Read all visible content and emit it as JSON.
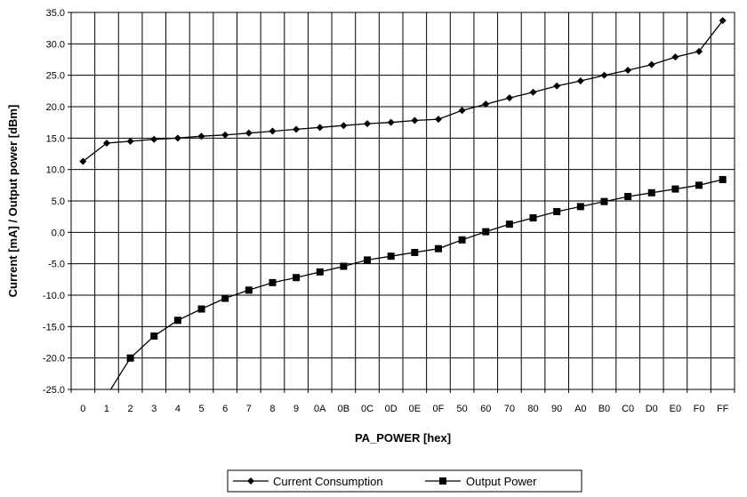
{
  "chart_data": {
    "type": "line",
    "xlabel": "PA_POWER [hex]",
    "ylabel": "Current [mA] / Output power [dBm]",
    "ylim": [
      -25,
      35
    ],
    "y_ticks": [
      "35.0",
      "30.0",
      "25.0",
      "20.0",
      "15.0",
      "10.0",
      "5.0",
      "0.0",
      "-5.0",
      "-10.0",
      "-15.0",
      "-20.0",
      "-25.0"
    ],
    "grid": true,
    "legend_position": "bottom",
    "categories": [
      "0",
      "1",
      "2",
      "3",
      "4",
      "5",
      "6",
      "7",
      "8",
      "9",
      "0A",
      "0B",
      "0C",
      "0D",
      "0E",
      "0F",
      "50",
      "60",
      "70",
      "80",
      "90",
      "A0",
      "B0",
      "C0",
      "D0",
      "E0",
      "F0",
      "FF"
    ],
    "series": [
      {
        "name": "Current Consumption",
        "marker": "diamond",
        "color": "#000000",
        "values": [
          11.3,
          14.2,
          14.5,
          14.8,
          15.0,
          15.3,
          15.5,
          15.8,
          16.1,
          16.4,
          16.7,
          17.0,
          17.3,
          17.5,
          17.8,
          18.0,
          19.4,
          20.4,
          21.4,
          22.3,
          23.3,
          24.1,
          25.0,
          25.8,
          26.7,
          27.9,
          28.8,
          33.7
        ]
      },
      {
        "name": "Output Power",
        "marker": "square",
        "color": "#000000",
        "values": [
          null,
          -26.0,
          -20.0,
          -16.5,
          -14.0,
          -12.2,
          -10.5,
          -9.2,
          -8.0,
          -7.2,
          -6.3,
          -5.4,
          -4.4,
          -3.8,
          -3.2,
          -2.6,
          -1.2,
          0.1,
          1.3,
          2.3,
          3.3,
          4.1,
          4.9,
          5.7,
          6.3,
          6.9,
          7.5,
          8.4
        ]
      }
    ]
  }
}
